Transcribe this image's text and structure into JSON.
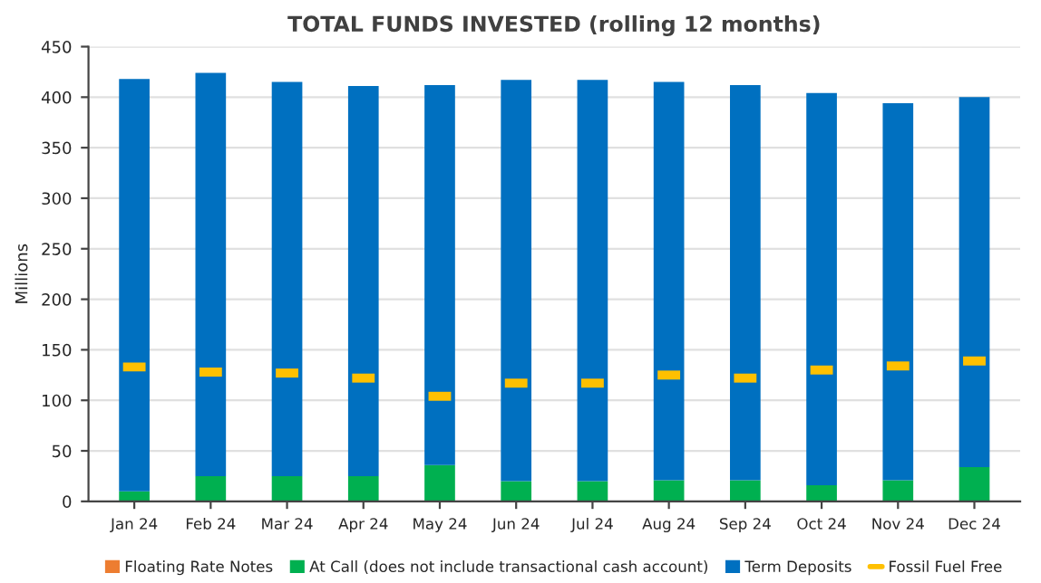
{
  "chart_data": {
    "type": "bar",
    "title": "TOTAL FUNDS INVESTED (rolling 12 months)",
    "ylabel": "Millions",
    "categories": [
      "Jan 24",
      "Feb 24",
      "Mar 24",
      "Apr 24",
      "May 24",
      "Jun 24",
      "Jul 24",
      "Aug 24",
      "Sep 24",
      "Oct 24",
      "Nov 24",
      "Dec 24"
    ],
    "stacked": true,
    "series": [
      {
        "name": "Floating Rate Notes",
        "color": "#ed7d31",
        "values": [
          0,
          0,
          0,
          0,
          0,
          0,
          0,
          0,
          0,
          0,
          0,
          0
        ]
      },
      {
        "name": "At Call (does not include transactional cash account)",
        "color": "#00b050",
        "values": [
          10,
          25,
          25,
          25,
          36,
          20,
          20,
          21,
          21,
          16,
          21,
          34
        ]
      },
      {
        "name": "Term Deposits",
        "color": "#0070c0",
        "values": [
          408,
          399,
          390,
          386,
          376,
          397,
          397,
          394,
          391,
          388,
          373,
          366
        ]
      },
      {
        "name": "Fossil Fuel Free",
        "color": "#ffc000",
        "type": "scatter",
        "values": [
          133,
          128,
          127,
          122,
          104,
          117,
          117,
          125,
          122,
          130,
          134,
          139
        ]
      }
    ],
    "ylim": [
      0,
      450
    ],
    "yticks": [
      0,
      50,
      100,
      150,
      200,
      250,
      300,
      350,
      400,
      450
    ],
    "grid": "y",
    "legend": "bottom"
  }
}
